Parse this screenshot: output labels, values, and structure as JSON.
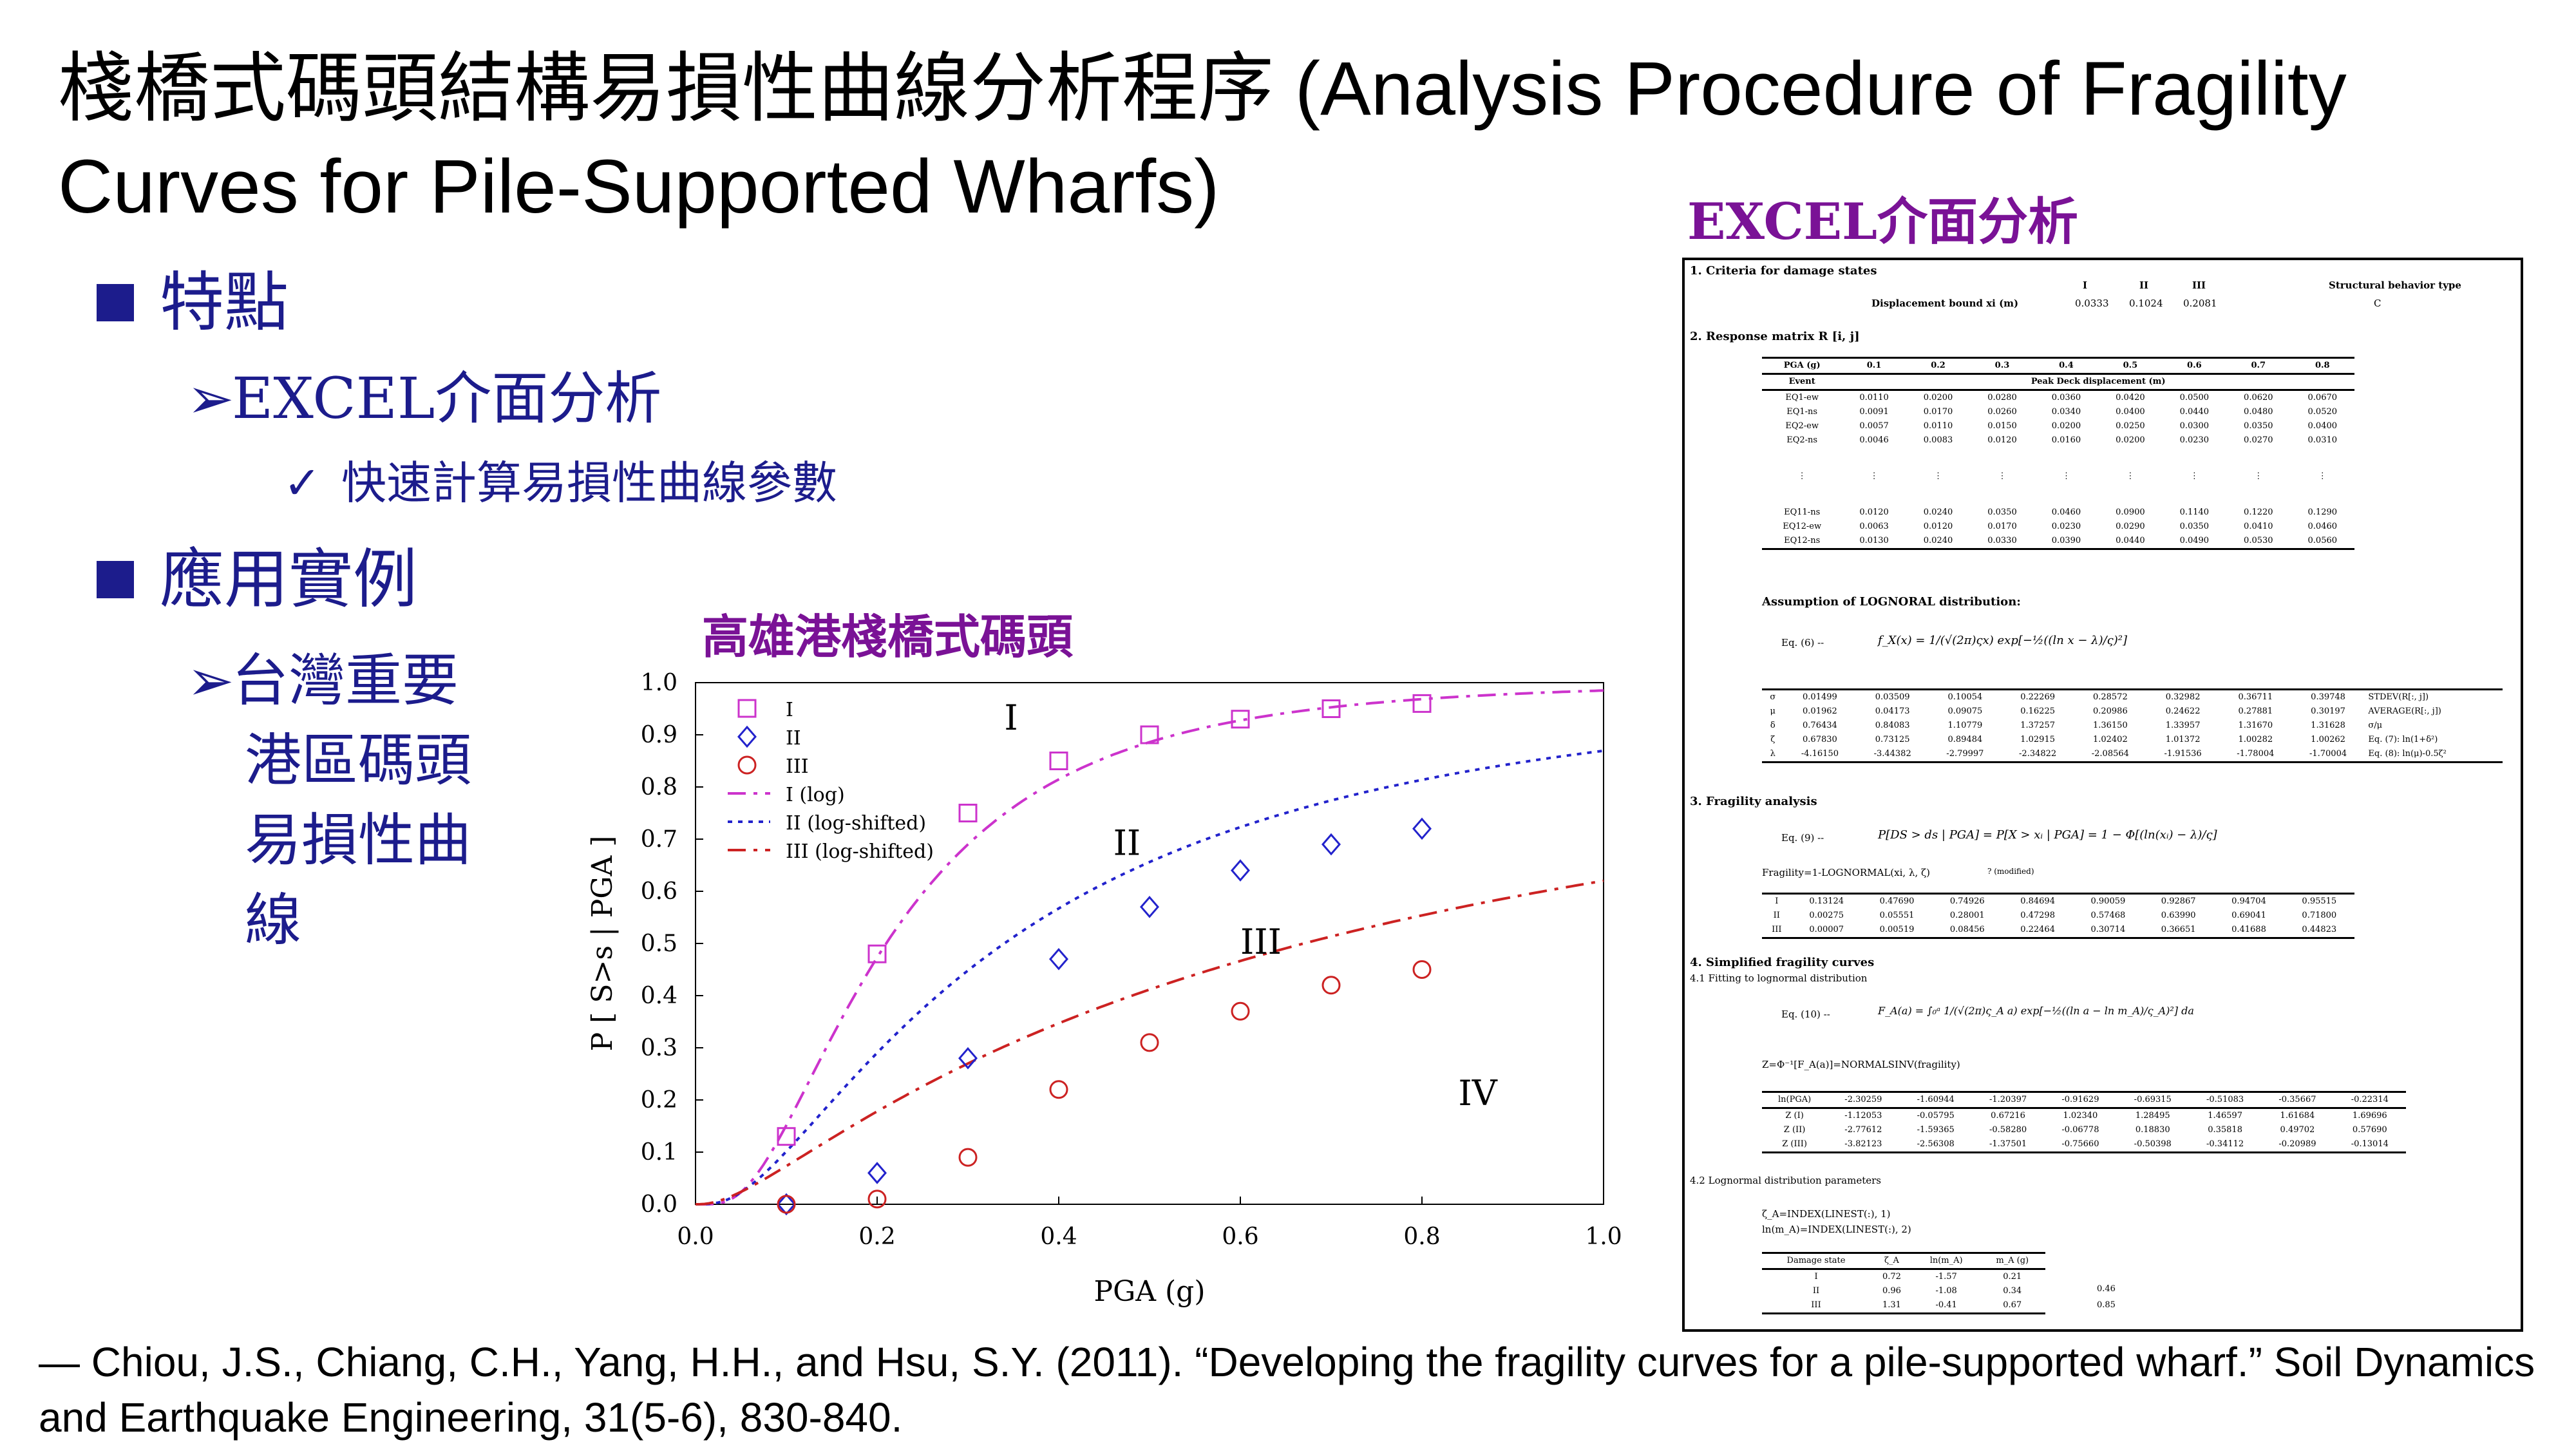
{
  "title": "棧橋式碼頭結構易損性曲線分析程序 (Analysis Procedure of Fragility Curves for Pile-Supported Wharfs)",
  "bullets": {
    "features": "特點",
    "excel_interface": "EXCEL介面分析",
    "fast_calc": "快速計算易損性曲線參數",
    "applications": "應用實例",
    "taiwan_line1": "台灣重要",
    "taiwan_line2": "港區碼頭",
    "taiwan_line3": "易損性曲",
    "taiwan_line4": "線"
  },
  "chart_heading": "高雄港棧橋式碼頭",
  "excel_heading": "EXCEL介面分析",
  "citation": "— Chiou, J.S., Chiang, C.H., Yang, H.H., and Hsu, S.Y. (2011). “Developing the fragility curves for a pile-supported wharf.” Soil Dynamics and Earthquake Engineering, 31(5-6), 830-840.",
  "chart_data": {
    "type": "scatter",
    "xlabel": "PGA (g)",
    "ylabel": "P [ S>s | PGA ]",
    "xlim": [
      0,
      1.0
    ],
    "ylim": [
      0,
      1.0
    ],
    "xticks": [
      "0.0",
      "0.2",
      "0.4",
      "0.6",
      "0.8",
      "1.0"
    ],
    "yticks": [
      "0.0",
      "0.1",
      "0.2",
      "0.3",
      "0.4",
      "0.5",
      "0.6",
      "0.7",
      "0.8",
      "0.9",
      "1.0"
    ],
    "grid": false,
    "legend": "top-left",
    "x": [
      0.1,
      0.2,
      0.3,
      0.4,
      0.5,
      0.6,
      0.7,
      0.8
    ],
    "series": [
      {
        "name": "I",
        "marker": "square",
        "color": "#cc33cc",
        "values": [
          0.13,
          0.48,
          0.75,
          0.85,
          0.9,
          0.93,
          0.95,
          0.96
        ]
      },
      {
        "name": "II",
        "marker": "diamond",
        "color": "#2222cc",
        "values": [
          0.0,
          0.06,
          0.28,
          0.47,
          0.57,
          0.64,
          0.69,
          0.72
        ]
      },
      {
        "name": "III",
        "marker": "circle",
        "color": "#cc2222",
        "values": [
          0.0,
          0.01,
          0.09,
          0.22,
          0.31,
          0.37,
          0.42,
          0.45
        ]
      }
    ],
    "curves": [
      {
        "name": "I (log)",
        "style": "dashdot",
        "color": "#cc33cc",
        "median": 0.21,
        "beta": 0.72,
        "shift": 0.0
      },
      {
        "name": "II (log-shifted)",
        "style": "dotted",
        "color": "#2222cc",
        "median": 0.34,
        "beta": 0.96,
        "shift": 0.0
      },
      {
        "name": "III (log-shifted)",
        "style": "dashdot",
        "color": "#cc2222",
        "median": 0.67,
        "beta": 1.31,
        "shift": 0.0
      }
    ],
    "annotations": [
      {
        "text": "I",
        "x": 0.34,
        "y": 0.91
      },
      {
        "text": "II",
        "x": 0.46,
        "y": 0.67
      },
      {
        "text": "III",
        "x": 0.6,
        "y": 0.48
      },
      {
        "text": "IV",
        "x": 0.84,
        "y": 0.19
      }
    ]
  },
  "excel": {
    "s1_title": "1. Criteria for damage states",
    "s1_levels": [
      "I",
      "II",
      "III"
    ],
    "s1_struct": "Structural behavior type",
    "s1_bound_label": "Displacement bound xi (m)",
    "s1_bounds": [
      "0.0333",
      "0.1024",
      "0.2081"
    ],
    "s1_struct_val": "C",
    "s2_title": "2. Response matrix R [i, j]",
    "s2_pga_label": "PGA (g)",
    "s2_pga": [
      "0.1",
      "0.2",
      "0.3",
      "0.4",
      "0.5",
      "0.6",
      "0.7",
      "0.8"
    ],
    "s2_event_label": "Event",
    "s2_disp_label": "Peak Deck displacement (m)",
    "s2_rows": [
      [
        "EQ1-ew",
        "0.0110",
        "0.0200",
        "0.0280",
        "0.0360",
        "0.0420",
        "0.0500",
        "0.0620",
        "0.0670"
      ],
      [
        "EQ1-ns",
        "0.0091",
        "0.0170",
        "0.0260",
        "0.0340",
        "0.0400",
        "0.0440",
        "0.0480",
        "0.0520"
      ],
      [
        "EQ2-ew",
        "0.0057",
        "0.0110",
        "0.0150",
        "0.0200",
        "0.0250",
        "0.0300",
        "0.0350",
        "0.0400"
      ],
      [
        "EQ2-ns",
        "0.0046",
        "0.0083",
        "0.0120",
        "0.0160",
        "0.0200",
        "0.0230",
        "0.0270",
        "0.0310"
      ],
      [
        "⋮",
        "⋮",
        "⋮",
        "⋮",
        "⋮",
        "⋮",
        "⋮",
        "⋮",
        "⋮"
      ],
      [
        "EQ11-ns",
        "0.0120",
        "0.0240",
        "0.0350",
        "0.0460",
        "0.0900",
        "0.1140",
        "0.1220",
        "0.1290"
      ],
      [
        "EQ12-ew",
        "0.0063",
        "0.0120",
        "0.0170",
        "0.0230",
        "0.0290",
        "0.0350",
        "0.0410",
        "0.0460"
      ],
      [
        "EQ12-ns",
        "0.0130",
        "0.0240",
        "0.0330",
        "0.0390",
        "0.0440",
        "0.0490",
        "0.0530",
        "0.0560"
      ]
    ],
    "lognormal_title": "Assumption of LOGNORAL distribution:",
    "eq6_label": "Eq. (6) --",
    "eq6": "f_X(x) = 1/(√(2π)ςx) exp[−½((ln x − λ)/ς)²]",
    "stats_rows": [
      [
        "σ",
        "0.01499",
        "0.03509",
        "0.10054",
        "0.22269",
        "0.28572",
        "0.32982",
        "0.36711",
        "0.39748",
        "STDEV(R[:, j])"
      ],
      [
        "μ",
        "0.01962",
        "0.04173",
        "0.09075",
        "0.16225",
        "0.20986",
        "0.24622",
        "0.27881",
        "0.30197",
        "AVERAGE(R[:, j])"
      ],
      [
        "δ",
        "0.76434",
        "0.84083",
        "1.10779",
        "1.37257",
        "1.36150",
        "1.33957",
        "1.31670",
        "1.31628",
        "σ/μ"
      ],
      [
        "ζ",
        "0.67830",
        "0.73125",
        "0.89484",
        "1.02915",
        "1.02402",
        "1.01372",
        "1.00282",
        "1.00262",
        "Eq. (7): ln(1+δ²)"
      ],
      [
        "λ",
        "-4.16150",
        "-3.44382",
        "-2.79997",
        "-2.34822",
        "-2.08564",
        "-1.91536",
        "-1.78004",
        "-1.70004",
        "Eq. (8): ln(μ)-0.5ζ²"
      ]
    ],
    "s3_title": "3. Fragility analysis",
    "eq9_label": "Eq. (9) --",
    "eq9": "P[DS > ds | PGA] = P[X > xᵢ | PGA] = 1 − Φ[(ln(xᵢ) − λ)/ς]",
    "frag_formula": "Fragility=1-LOGNORMAL(xi, λ, ζ)",
    "frag_modified": "? (modified)",
    "frag_rows": [
      [
        "I",
        "0.13124",
        "0.47690",
        "0.74926",
        "0.84694",
        "0.90059",
        "0.92867",
        "0.94704",
        "0.95515"
      ],
      [
        "II",
        "0.00275",
        "0.05551",
        "0.28001",
        "0.47298",
        "0.57468",
        "0.63990",
        "0.69041",
        "0.71800"
      ],
      [
        "III",
        "0.00007",
        "0.00519",
        "0.08456",
        "0.22464",
        "0.30714",
        "0.36651",
        "0.41688",
        "0.44823"
      ]
    ],
    "s4_title": "4. Simplified fragility curves",
    "s41_title": "4.1 Fitting to lognormal distribution",
    "eq10_label": "Eq. (10) --",
    "eq10": "F_A(a) = ∫₀ᵃ 1/(√(2π)ς_A a) exp[−½((ln a − ln m_A)/ς_A)²] da",
    "z_formula": "Z=Φ⁻¹[F_A(a)]=NORMALSINV(fragility)",
    "z_rows": [
      [
        "ln(PGA)",
        "-2.30259",
        "-1.60944",
        "-1.20397",
        "-0.91629",
        "-0.69315",
        "-0.51083",
        "-0.35667",
        "-0.22314"
      ],
      [
        "Z (I)",
        "-1.12053",
        "-0.05795",
        "0.67216",
        "1.02340",
        "1.28495",
        "1.46597",
        "1.61684",
        "1.69696"
      ],
      [
        "Z (II)",
        "-2.77612",
        "-1.59365",
        "-0.58280",
        "-0.06778",
        "0.18830",
        "0.35818",
        "0.49702",
        "0.57690"
      ],
      [
        "Z (III)",
        "-3.82123",
        "-2.56308",
        "-1.37501",
        "-0.75660",
        "-0.50398",
        "-0.34112",
        "-0.20989",
        "-0.13014"
      ]
    ],
    "s42_title": "4.2 Lognormal distribution parameters",
    "zeta_formula": "ζ_A=INDEX(LINEST(:), 1)",
    "lnm_formula": "ln(m_A)=INDEX(LINEST(:), 2)",
    "param_headers": [
      "Damage state",
      "ζ_A",
      "ln(m_A)",
      "m_A (g)"
    ],
    "param_rows": [
      [
        "I",
        "0.72",
        "-1.57",
        "0.21"
      ],
      [
        "II",
        "0.96",
        "-1.08",
        "0.34"
      ],
      [
        "III",
        "1.31",
        "-0.41",
        "0.67"
      ]
    ],
    "side_vals": [
      "0.46",
      "0.85"
    ]
  }
}
